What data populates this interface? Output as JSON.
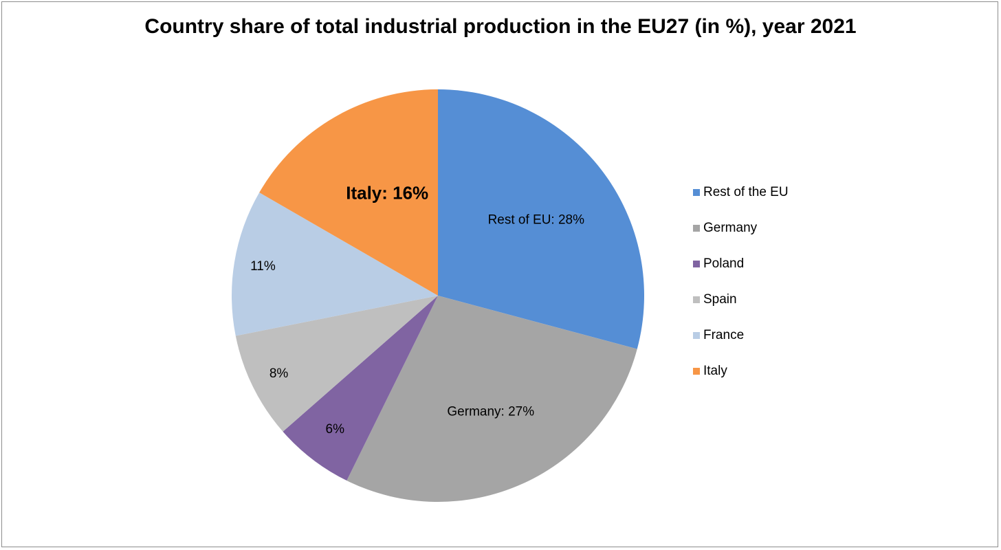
{
  "chart_data": {
    "type": "pie",
    "title": "Country share of total industrial production in the EU27 (in %), year 2021",
    "slices": [
      {
        "name": "Rest of the EU",
        "value": 28,
        "label": "Rest of EU: 28%",
        "color": "#558ed5"
      },
      {
        "name": "Germany",
        "value": 27,
        "label": "Germany: 27%",
        "color": "#a5a5a5"
      },
      {
        "name": "Poland",
        "value": 6,
        "label": "6%",
        "color": "#8064a2"
      },
      {
        "name": "Spain",
        "value": 8,
        "label": "8%",
        "color": "#bfbfbf"
      },
      {
        "name": "France",
        "value": 11,
        "label": "11%",
        "color": "#b9cde5"
      },
      {
        "name": "Italy",
        "value": 16,
        "label": "Italy: 16%",
        "color": "#f79646",
        "highlight": true
      }
    ],
    "legend_position": "right"
  }
}
